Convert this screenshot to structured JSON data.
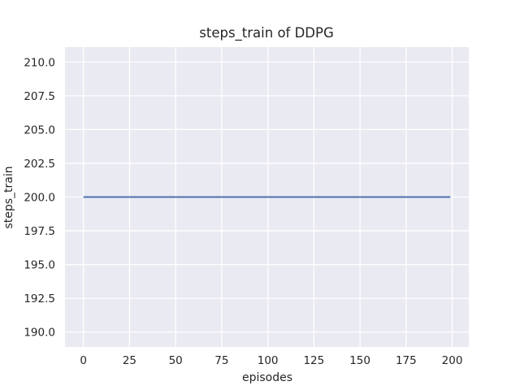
{
  "figure": {
    "title": "steps_train of DDPG",
    "xlabel": "episodes",
    "ylabel": "steps_train"
  },
  "chart_data": {
    "type": "line",
    "title": "steps_train of DDPG",
    "xlabel": "episodes",
    "ylabel": "steps_train",
    "xlim": [
      -10,
      209
    ],
    "ylim": [
      188.9,
      211.1
    ],
    "x_ticks": [
      0,
      25,
      50,
      75,
      100,
      125,
      150,
      175,
      200
    ],
    "x_tick_labels": [
      "0",
      "25",
      "50",
      "75",
      "100",
      "125",
      "150",
      "175",
      "200"
    ],
    "y_ticks": [
      190.0,
      192.5,
      195.0,
      197.5,
      200.0,
      202.5,
      205.0,
      207.5,
      210.0
    ],
    "y_tick_labels": [
      "190.0",
      "192.5",
      "195.0",
      "197.5",
      "200.0",
      "202.5",
      "205.0",
      "207.5",
      "210.0"
    ],
    "grid": true,
    "legend": false,
    "series": [
      {
        "name": "steps_train",
        "color": "#4c72b0",
        "x": [
          0,
          199
        ],
        "y": [
          200,
          200
        ]
      }
    ],
    "colors": {
      "figure_background": "#ffffff",
      "axes_background": "#eaeaf2",
      "grid": "#ffffff",
      "text": "#262626"
    }
  }
}
